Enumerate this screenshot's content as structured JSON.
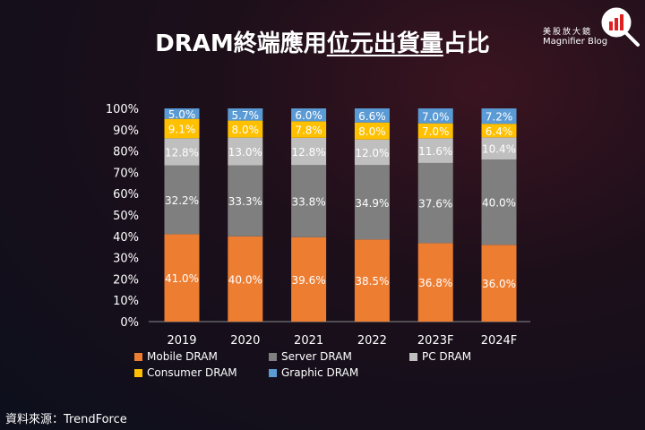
{
  "title_parts": [
    "DRAM終端應用",
    "位元出貨量",
    "占比"
  ],
  "logo": {
    "cn": "美股放大鏡",
    "en": "Magnifier Blog"
  },
  "source": "資料來源：TrendForce",
  "chart_data": {
    "type": "bar",
    "stacked": true,
    "categories": [
      "2019",
      "2020",
      "2021",
      "2022",
      "2023F",
      "2024F"
    ],
    "ylim": [
      0,
      100
    ],
    "yticks": [
      "0%",
      "10%",
      "20%",
      "30%",
      "40%",
      "50%",
      "60%",
      "70%",
      "80%",
      "90%",
      "100%"
    ],
    "legend_position": "bottom",
    "series": [
      {
        "name": "Mobile DRAM",
        "color": "#ED7D31",
        "values": [
          41.0,
          40.0,
          39.6,
          38.5,
          36.8,
          36.0
        ]
      },
      {
        "name": "Server DRAM",
        "color": "#7F7F7F",
        "values": [
          32.2,
          33.3,
          33.8,
          34.9,
          37.6,
          40.0
        ]
      },
      {
        "name": "PC DRAM",
        "color": "#BFBFBF",
        "values": [
          12.8,
          13.0,
          12.8,
          12.0,
          11.6,
          10.4
        ]
      },
      {
        "name": "Consumer DRAM",
        "color": "#FFC000",
        "values": [
          9.1,
          8.0,
          7.8,
          8.0,
          7.0,
          6.4
        ]
      },
      {
        "name": "Graphic DRAM",
        "color": "#5B9BD5",
        "values": [
          5.0,
          5.7,
          6.0,
          6.6,
          7.0,
          7.2
        ]
      }
    ]
  }
}
